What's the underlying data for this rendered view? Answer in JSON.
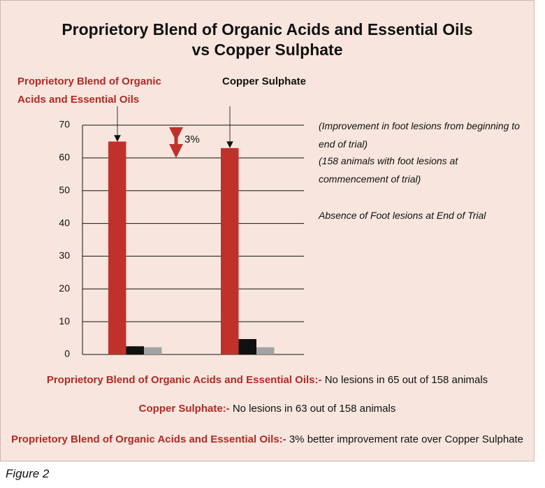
{
  "chart_data": {
    "type": "bar",
    "title": [
      "Proprietory Blend of Organic Acids and Essential Oils",
      "vs Copper Sulphate"
    ],
    "categories": [
      "Proprietory Blend of Organic Acids and Essential Oils",
      "Copper Sulphate"
    ],
    "category_colors": [
      "#b02a24",
      "#111111"
    ],
    "series": [
      {
        "color": "#c0312b",
        "values": [
          65,
          63
        ]
      },
      {
        "color": "#111111",
        "values": [
          2.5,
          4.7
        ]
      },
      {
        "color": "#a3a3a3",
        "values": [
          2.2,
          2.2
        ]
      }
    ],
    "ylim": [
      0,
      70
    ],
    "yticks": [
      0,
      10,
      20,
      30,
      40,
      50,
      60,
      70
    ],
    "grid": true,
    "annotations": [
      "3%"
    ],
    "notes": [
      "(Improvement in foot lesions from beginning to end of trial)",
      "(158 animals with foot lesions at commencement of trial)",
      "Absence of Foot lesions at End of Trial"
    ],
    "footer": [
      {
        "label": "Proprietory Blend of Organic Acids and Essential Oils:-",
        "text": "No lesions in 65 out of 158 animals"
      },
      {
        "label": "Copper Sulphate:-",
        "text": "No lesions in 63 out of 158 animals"
      },
      {
        "label": "Proprietory Blend of Organic Acids and Essential Oils:-",
        "text": "3% better improvement rate over Copper Sulphate"
      }
    ],
    "caption": "Figure 2"
  }
}
